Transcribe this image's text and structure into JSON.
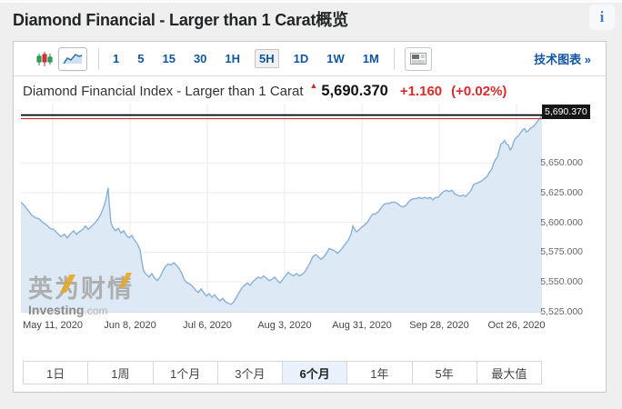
{
  "page": {
    "title": "Diamond Financial - Larger than 1 Carat概览",
    "info_icon": "i"
  },
  "toolbar": {
    "chart_type_icons": [
      {
        "name": "candlestick-chart-icon",
        "selected": false
      },
      {
        "name": "area-chart-icon",
        "selected": true
      }
    ],
    "intervals": [
      {
        "label": "1",
        "selected": false
      },
      {
        "label": "5",
        "selected": false
      },
      {
        "label": "15",
        "selected": false
      },
      {
        "label": "30",
        "selected": false
      },
      {
        "label": "1H",
        "selected": false
      },
      {
        "label": "5H",
        "selected": true
      },
      {
        "label": "1D",
        "selected": false
      },
      {
        "label": "1W",
        "selected": false
      },
      {
        "label": "1M",
        "selected": false
      }
    ],
    "news_icon": "news-panel-icon",
    "tech_chart_link": "技术图表 »"
  },
  "chart_header": {
    "title": "Diamond Financial Index - Larger than 1 Carat",
    "arrow": "▲",
    "price": "5,690.370",
    "change": "+1.160",
    "change_pct": "(+0.02%)"
  },
  "watermark": {
    "cn": "英为财情",
    "en": "Investing",
    "domain": ".com"
  },
  "range_buttons": [
    {
      "label": "1日",
      "selected": false
    },
    {
      "label": "1周",
      "selected": false
    },
    {
      "label": "1个月",
      "selected": false
    },
    {
      "label": "3个月",
      "selected": false
    },
    {
      "label": "6个月",
      "selected": true
    },
    {
      "label": "1年",
      "selected": false
    },
    {
      "label": "5年",
      "selected": false
    },
    {
      "label": "最大值",
      "selected": false
    }
  ],
  "colors": {
    "accent_blue": "#1256a0",
    "change_red": "#d92b2b",
    "line_blue": "#8ab0d8",
    "area_fill": "#dde9f5",
    "grid": "#ebebeb",
    "badge_bg": "#161616",
    "current_line": "#000000",
    "previous_close_line": "#c03434"
  },
  "chart_data": {
    "type": "area",
    "title": "Diamond Financial Index - Larger than 1 Carat",
    "interval": "5H",
    "range": "6个月",
    "current_price": 5690.37,
    "price_label": "5,690.370",
    "change": 1.16,
    "change_pct": 0.02,
    "previous_close": 5689.21,
    "grid": true,
    "ylim": [
      5524,
      5700
    ],
    "y_ticks": [
      5650,
      5625,
      5600,
      5575,
      5550,
      5525
    ],
    "y_tick_labels": [
      "5,650.000",
      "5,625.000",
      "5,600.000",
      "5,575.000",
      "5,550.000",
      "5,525.000"
    ],
    "x_ticks": [
      {
        "label": "May 11, 2020",
        "f": 0.0611
      },
      {
        "label": "Jun 8, 2020",
        "f": 0.2094
      },
      {
        "label": "Jul 6, 2020",
        "f": 0.3578
      },
      {
        "label": "Aug 3, 2020",
        "f": 0.5061
      },
      {
        "label": "Aug 31, 2020",
        "f": 0.6545
      },
      {
        "label": "Sep 28, 2020",
        "f": 0.8028
      },
      {
        "label": "Oct 26, 2020",
        "f": 0.9511
      }
    ],
    "points": [
      [
        0,
        5617
      ],
      [
        4,
        5614
      ],
      [
        8,
        5610
      ],
      [
        12,
        5606
      ],
      [
        16,
        5604
      ],
      [
        20,
        5603
      ],
      [
        24,
        5600
      ],
      [
        28,
        5598
      ],
      [
        32,
        5595
      ],
      [
        36,
        5594
      ],
      [
        40,
        5591
      ],
      [
        44,
        5588
      ],
      [
        48,
        5590
      ],
      [
        51,
        5587
      ],
      [
        54,
        5590
      ],
      [
        58,
        5593
      ],
      [
        61,
        5590
      ],
      [
        64,
        5592
      ],
      [
        68,
        5594
      ],
      [
        71,
        5597
      ],
      [
        74,
        5594
      ],
      [
        78,
        5597
      ],
      [
        82,
        5600
      ],
      [
        85,
        5603
      ],
      [
        88,
        5607
      ],
      [
        90,
        5611
      ],
      [
        92,
        5615
      ],
      [
        94,
        5621
      ],
      [
        95,
        5626
      ],
      [
        96,
        5629
      ],
      [
        97,
        5617
      ],
      [
        98,
        5608
      ],
      [
        99,
        5600
      ],
      [
        101,
        5596
      ],
      [
        104,
        5593
      ],
      [
        107,
        5595
      ],
      [
        110,
        5591
      ],
      [
        113,
        5593
      ],
      [
        116,
        5589
      ],
      [
        119,
        5587
      ],
      [
        122,
        5589
      ],
      [
        125,
        5585
      ],
      [
        128,
        5582
      ],
      [
        131,
        5577
      ],
      [
        133,
        5567
      ],
      [
        135,
        5559
      ],
      [
        138,
        5556
      ],
      [
        141,
        5554
      ],
      [
        144,
        5557
      ],
      [
        147,
        5553
      ],
      [
        150,
        5551
      ],
      [
        153,
        5554
      ],
      [
        156,
        5559
      ],
      [
        159,
        5563
      ],
      [
        162,
        5565
      ],
      [
        165,
        5564
      ],
      [
        168,
        5566
      ],
      [
        171,
        5564
      ],
      [
        174,
        5561
      ],
      [
        177,
        5557
      ],
      [
        180,
        5551
      ],
      [
        183,
        5549
      ],
      [
        186,
        5548
      ],
      [
        189,
        5546
      ],
      [
        192,
        5543
      ],
      [
        195,
        5541
      ],
      [
        198,
        5544
      ],
      [
        201,
        5541
      ],
      [
        204,
        5538
      ],
      [
        207,
        5540
      ],
      [
        210,
        5537
      ],
      [
        213,
        5539
      ],
      [
        216,
        5536
      ],
      [
        219,
        5534
      ],
      [
        222,
        5536
      ],
      [
        225,
        5533
      ],
      [
        228,
        5532
      ],
      [
        231,
        5531
      ],
      [
        234,
        5533
      ],
      [
        237,
        5537
      ],
      [
        240,
        5541
      ],
      [
        243,
        5545
      ],
      [
        246,
        5547
      ],
      [
        249,
        5549
      ],
      [
        252,
        5547
      ],
      [
        255,
        5550
      ],
      [
        258,
        5552
      ],
      [
        261,
        5554
      ],
      [
        264,
        5553
      ],
      [
        267,
        5555
      ],
      [
        270,
        5553
      ],
      [
        273,
        5551
      ],
      [
        276,
        5552
      ],
      [
        279,
        5554
      ],
      [
        282,
        5551
      ],
      [
        285,
        5549
      ],
      [
        288,
        5552
      ],
      [
        291,
        5555
      ],
      [
        294,
        5558
      ],
      [
        297,
        5556
      ],
      [
        300,
        5555
      ],
      [
        303,
        5557
      ],
      [
        306,
        5555
      ],
      [
        309,
        5556
      ],
      [
        312,
        5558
      ],
      [
        315,
        5562
      ],
      [
        318,
        5566
      ],
      [
        321,
        5571
      ],
      [
        324,
        5573
      ],
      [
        327,
        5571
      ],
      [
        330,
        5569
      ],
      [
        333,
        5571
      ],
      [
        336,
        5574
      ],
      [
        339,
        5578
      ],
      [
        342,
        5577
      ],
      [
        345,
        5576
      ],
      [
        348,
        5574
      ],
      [
        351,
        5576
      ],
      [
        354,
        5579
      ],
      [
        357,
        5582
      ],
      [
        360,
        5585
      ],
      [
        363,
        5590
      ],
      [
        365,
        5597
      ],
      [
        367,
        5594
      ],
      [
        369,
        5592
      ],
      [
        372,
        5594
      ],
      [
        375,
        5596
      ],
      [
        378,
        5598
      ],
      [
        381,
        5600
      ],
      [
        384,
        5604
      ],
      [
        387,
        5607
      ],
      [
        390,
        5607
      ],
      [
        393,
        5609
      ],
      [
        396,
        5612
      ],
      [
        399,
        5615
      ],
      [
        402,
        5616
      ],
      [
        405,
        5616
      ],
      [
        408,
        5617
      ],
      [
        411,
        5617
      ],
      [
        414,
        5616
      ],
      [
        417,
        5614
      ],
      [
        420,
        5613
      ],
      [
        423,
        5614
      ],
      [
        426,
        5617
      ],
      [
        429,
        5619
      ],
      [
        432,
        5620
      ],
      [
        435,
        5620
      ],
      [
        438,
        5621
      ],
      [
        441,
        5620
      ],
      [
        444,
        5621
      ],
      [
        447,
        5620
      ],
      [
        450,
        5621
      ],
      [
        453,
        5619
      ],
      [
        456,
        5621
      ],
      [
        459,
        5621
      ],
      [
        462,
        5624
      ],
      [
        465,
        5626
      ],
      [
        468,
        5627
      ],
      [
        471,
        5626
      ],
      [
        474,
        5627
      ],
      [
        477,
        5624
      ],
      [
        480,
        5623
      ],
      [
        483,
        5622
      ],
      [
        486,
        5623
      ],
      [
        489,
        5622
      ],
      [
        492,
        5624
      ],
      [
        495,
        5627
      ],
      [
        498,
        5632
      ],
      [
        501,
        5633
      ],
      [
        504,
        5634
      ],
      [
        507,
        5635
      ],
      [
        510,
        5637
      ],
      [
        513,
        5639
      ],
      [
        515,
        5642
      ],
      [
        518,
        5645
      ],
      [
        520,
        5650
      ],
      [
        522,
        5653
      ],
      [
        524,
        5655
      ],
      [
        526,
        5661
      ],
      [
        528,
        5666
      ],
      [
        530,
        5667
      ],
      [
        532,
        5669
      ],
      [
        534,
        5666
      ],
      [
        536,
        5665
      ],
      [
        538,
        5661
      ],
      [
        540,
        5663
      ],
      [
        542,
        5668
      ],
      [
        544,
        5671
      ],
      [
        546,
        5672
      ],
      [
        548,
        5674
      ],
      [
        550,
        5676
      ],
      [
        552,
        5678
      ],
      [
        554,
        5679
      ],
      [
        556,
        5676
      ],
      [
        558,
        5677
      ],
      [
        560,
        5679
      ],
      [
        562,
        5680
      ],
      [
        564,
        5681
      ],
      [
        566,
        5683
      ],
      [
        568,
        5685
      ],
      [
        570,
        5687
      ],
      [
        572,
        5689
      ],
      [
        573,
        5690.4
      ]
    ]
  }
}
